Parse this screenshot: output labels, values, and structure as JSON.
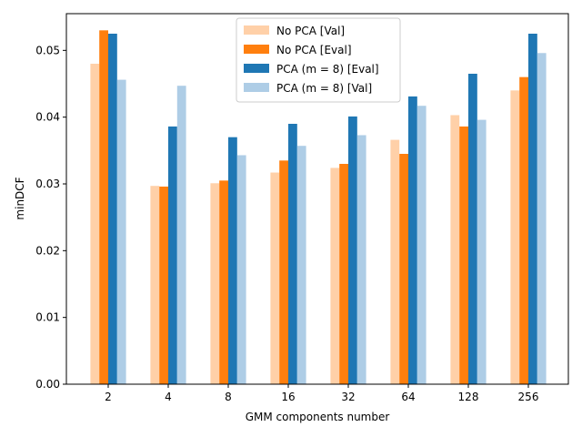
{
  "chart_data": {
    "type": "bar",
    "title": "",
    "xlabel": "GMM components number",
    "ylabel": "minDCF",
    "categories": [
      "2",
      "4",
      "8",
      "16",
      "32",
      "64",
      "128",
      "256"
    ],
    "ylim": [
      0,
      0.0555
    ],
    "yticks": [
      "0.00",
      "0.01",
      "0.02",
      "0.03",
      "0.04",
      "0.05"
    ],
    "ytick_values": [
      0,
      0.01,
      0.02,
      0.03,
      0.04,
      0.05
    ],
    "grid": false,
    "legend_position": "top-center",
    "series": [
      {
        "name": "No PCA [Val]",
        "color": "#ffd0a8",
        "values": [
          0.048,
          0.0297,
          0.0301,
          0.0317,
          0.0324,
          0.0366,
          0.0403,
          0.044
        ]
      },
      {
        "name": "No PCA [Eval]",
        "color": "#ff7f0e",
        "values": [
          0.053,
          0.0296,
          0.0305,
          0.0335,
          0.033,
          0.0345,
          0.0386,
          0.046
        ]
      },
      {
        "name": "PCA (m = 8) [Eval]",
        "color": "#1f77b4",
        "values": [
          0.0525,
          0.0386,
          0.037,
          0.039,
          0.0401,
          0.0431,
          0.0465,
          0.0525
        ]
      },
      {
        "name": "PCA (m = 8) [Val]",
        "color": "#aecde6",
        "values": [
          0.0456,
          0.0447,
          0.0343,
          0.0357,
          0.0373,
          0.0417,
          0.0396,
          0.0496
        ]
      }
    ]
  }
}
